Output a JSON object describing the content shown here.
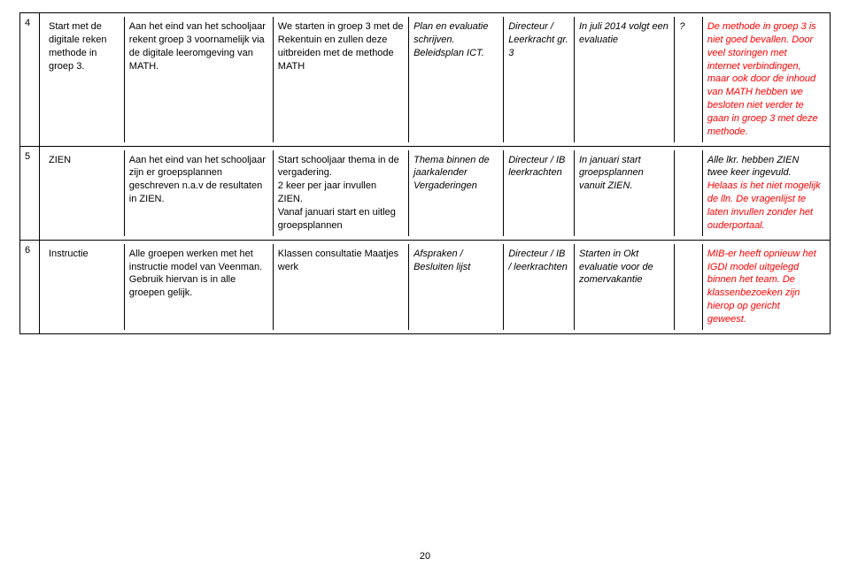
{
  "page_number": "20",
  "table": {
    "border_color": "#000000",
    "background_color": "#ffffff",
    "font_family": "Verdana",
    "base_fontsize": 11,
    "red_color": "#ff0000",
    "rows": [
      {
        "num": "4",
        "c1": "Start met de digitale reken methode in groep 3.",
        "c2": "Aan het eind van het schooljaar rekent groep 3 voornamelijk via de digitale leeromgeving van MATH.",
        "c3": "We starten in groep 3 met de Rekentuin en zullen deze uitbreiden met de methode MATH",
        "c4": "Plan en evaluatie schrijven. Beleidsplan ICT.",
        "c5": "Directeur / Leerkracht gr. 3",
        "c6": "In juli 2014 volgt een evaluatie",
        "c7": "?",
        "c8": "De methode in groep 3 is niet goed bevallen. Door veel storingen met internet verbindingen, maar ook door de inhoud van MATH hebben we besloten niet verder te gaan in groep 3 met deze methode."
      },
      {
        "num": "5",
        "c1": "ZIEN",
        "c2": "Aan het eind van het schooljaar zijn er groepsplannen geschreven n.a.v de resultaten in ZIEN.",
        "c3": "Start schooljaar thema in de vergadering.\n2 keer per jaar invullen ZIEN.\nVanaf januari start en uitleg groepsplannen",
        "c4": "Thema binnen de jaarkalender Vergaderingen",
        "c5": "Directeur / IB leerkrachten",
        "c6": "In januari start groepsplannen vanuit ZIEN.",
        "c7": "",
        "c8a": "Alle lkr. hebben ZIEN twee keer ingevuld. ",
        "c8b": "Helaas is het niet mogelijk de lln. De vragenlijst te laten invullen zonder het ouderportaal."
      },
      {
        "num": "6",
        "c1": "Instructie",
        "c2": "Alle groepen werken met het instructie model van Veenman. Gebruik hiervan is in alle groepen gelijk.",
        "c3": "Klassen consultatie Maatjes werk",
        "c4": "Afspraken / Besluiten lijst",
        "c5": "Directeur / IB / leerkrachten",
        "c6": "Starten in Okt evaluatie voor de zomervakantie",
        "c7": "",
        "c8": "MIB-er heeft opnieuw het IGDI model uitgelegd binnen het team. De klassenbezoeken zijn hierop op gericht geweest."
      }
    ]
  }
}
